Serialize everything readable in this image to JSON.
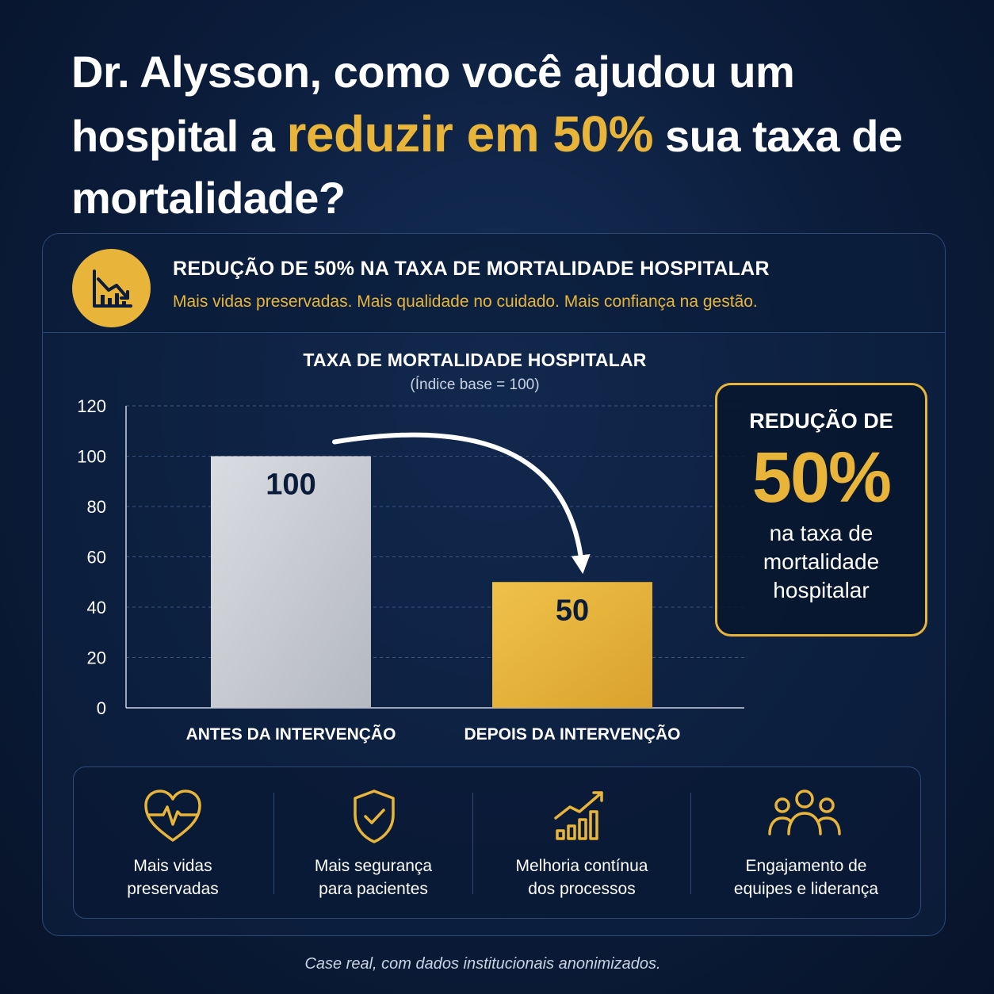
{
  "headline": {
    "part1": "Dr. Alysson, como você ajudou um hospital a ",
    "highlight": "reduzir em 50%",
    "part2": " sua taxa de mortalidade?"
  },
  "card": {
    "icon": "declining-chart-icon",
    "title": "REDUÇÃO DE 50% NA TAXA DE MORTALIDADE HOSPITALAR",
    "subtitle": "Mais vidas preservadas. Mais qualidade no cuidado. Mais confiança na gestão."
  },
  "chart_data": {
    "type": "bar",
    "title": "TAXA DE MORTALIDADE HOSPITALAR",
    "subtitle": "(Índice base = 100)",
    "categories": [
      "ANTES DA INTERVENÇÃO",
      "DEPOIS DA INTERVENÇÃO"
    ],
    "values": [
      100,
      50
    ],
    "data_labels": [
      "100",
      "50"
    ],
    "ylim": [
      0,
      120
    ],
    "yticks": [
      0,
      20,
      40,
      60,
      80,
      100,
      120
    ],
    "ytick_labels": [
      "0",
      "20",
      "40",
      "60",
      "80",
      "100",
      "120"
    ],
    "grid": true,
    "bar_colors": [
      "#c8ccd2",
      "#e8b53a"
    ],
    "annotation": "curved arrow from first bar to second bar"
  },
  "callout": {
    "top": "REDUÇÃO DE",
    "big": "50%",
    "bottom": "na taxa de mortalidade hospitalar"
  },
  "features": [
    {
      "icon": "heart-pulse-icon",
      "label": "Mais vidas\npreservadas"
    },
    {
      "icon": "shield-check-icon",
      "label": "Mais segurança\npara pacientes"
    },
    {
      "icon": "growth-chart-icon",
      "label": "Melhoria contínua\ndos processos"
    },
    {
      "icon": "team-icon",
      "label": "Engajamento de\nequipes e liderança"
    }
  ],
  "colors": {
    "accent": "#e8b53a",
    "background": "#0b1c3a",
    "text": "#ffffff"
  },
  "footnote": "Case real, com dados institucionais anonimizados."
}
